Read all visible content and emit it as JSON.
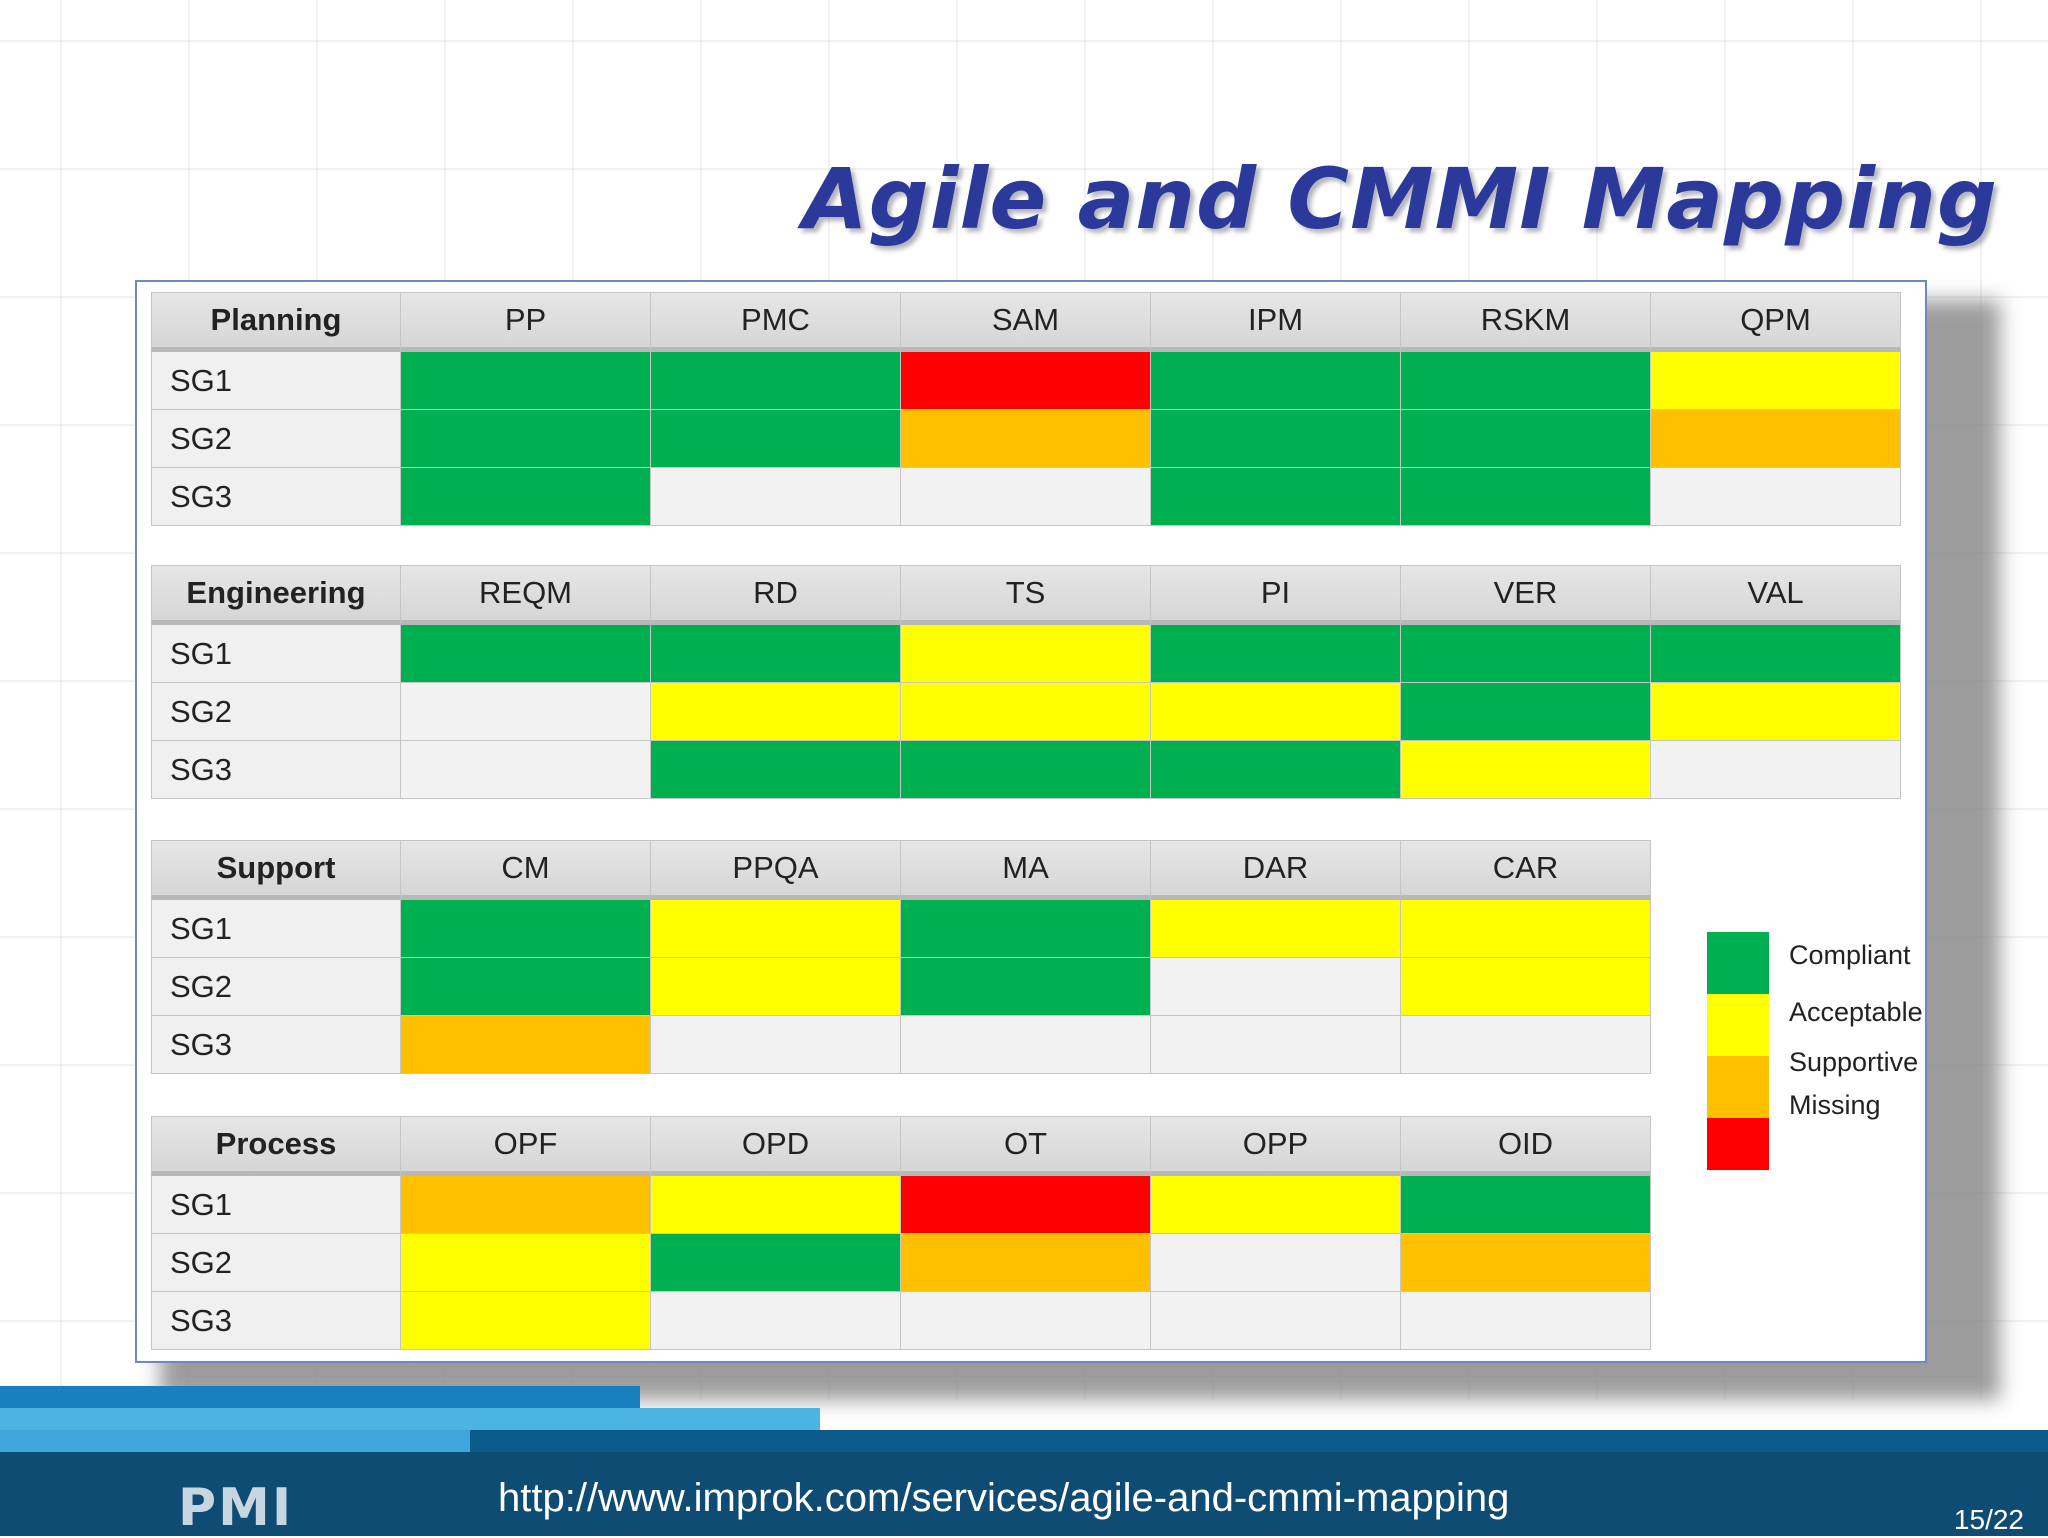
{
  "title": "Agile and CMMI Mapping",
  "status_colors": {
    "compliant": "#00b050",
    "acceptable": "#ffff00",
    "supportive": "#ffc000",
    "missing": "#ff0000",
    "none": "#f2f2f2"
  },
  "groups": [
    {
      "name": "Planning",
      "areas": [
        "PP",
        "PMC",
        "SAM",
        "IPM",
        "RSKM",
        "QPM"
      ],
      "rows": [
        {
          "label": "SG1",
          "cells": [
            "compliant",
            "compliant",
            "missing",
            "compliant",
            "compliant",
            "acceptable"
          ]
        },
        {
          "label": "SG2",
          "cells": [
            "compliant",
            "compliant",
            "supportive",
            "compliant",
            "compliant",
            "supportive"
          ]
        },
        {
          "label": "SG3",
          "cells": [
            "compliant",
            "none",
            "none",
            "compliant",
            "compliant",
            "none"
          ]
        }
      ]
    },
    {
      "name": "Engineering",
      "areas": [
        "REQM",
        "RD",
        "TS",
        "PI",
        "VER",
        "VAL"
      ],
      "rows": [
        {
          "label": "SG1",
          "cells": [
            "compliant",
            "compliant",
            "acceptable",
            "compliant",
            "compliant",
            "compliant"
          ]
        },
        {
          "label": "SG2",
          "cells": [
            "none",
            "acceptable",
            "acceptable",
            "acceptable",
            "compliant",
            "acceptable"
          ]
        },
        {
          "label": "SG3",
          "cells": [
            "none",
            "compliant",
            "compliant",
            "compliant",
            "acceptable",
            "none"
          ]
        }
      ]
    },
    {
      "name": "Support",
      "areas": [
        "CM",
        "PPQA",
        "MA",
        "DAR",
        "CAR"
      ],
      "rows": [
        {
          "label": "SG1",
          "cells": [
            "compliant",
            "acceptable",
            "compliant",
            "acceptable",
            "acceptable"
          ]
        },
        {
          "label": "SG2",
          "cells": [
            "compliant",
            "acceptable",
            "compliant",
            "none",
            "acceptable"
          ]
        },
        {
          "label": "SG3",
          "cells": [
            "supportive",
            "none",
            "none",
            "none",
            "none"
          ]
        }
      ]
    },
    {
      "name": "Process",
      "areas": [
        "OPF",
        "OPD",
        "OT",
        "OPP",
        "OID"
      ],
      "rows": [
        {
          "label": "SG1",
          "cells": [
            "supportive",
            "acceptable",
            "missing",
            "acceptable",
            "compliant"
          ]
        },
        {
          "label": "SG2",
          "cells": [
            "acceptable",
            "compliant",
            "supportive",
            "none",
            "supportive"
          ]
        },
        {
          "label": "SG3",
          "cells": [
            "acceptable",
            "none",
            "none",
            "none",
            "none"
          ]
        }
      ]
    }
  ],
  "legend": [
    {
      "key": "compliant",
      "label": "Compliant"
    },
    {
      "key": "acceptable",
      "label": "Acceptable"
    },
    {
      "key": "supportive",
      "label": "Supportive"
    },
    {
      "key": "missing",
      "label": "Missing"
    }
  ],
  "footer": {
    "logo": "PMI",
    "url": "http://www.improk.com/services/agile-and-cmmi-mapping",
    "page": "15/22"
  }
}
